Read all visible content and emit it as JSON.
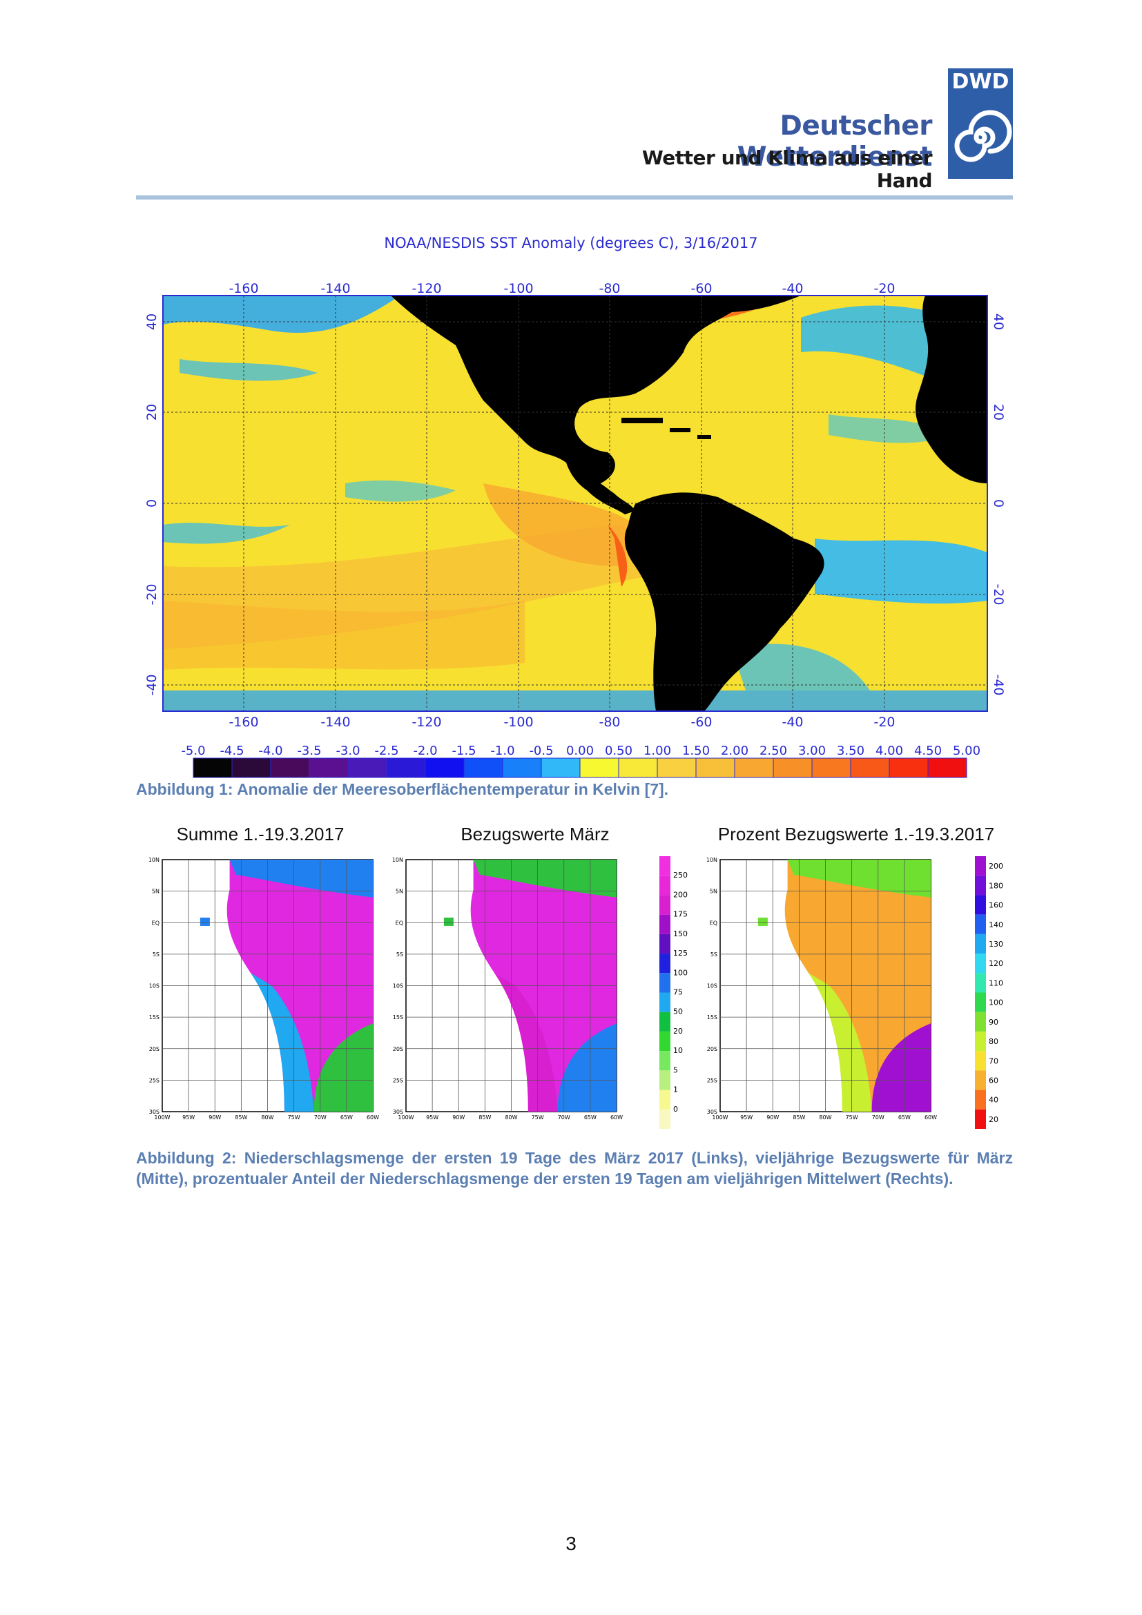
{
  "header": {
    "brand_name": "Deutscher Wetterdienst",
    "brand_tagline": "Wetter und Klima aus einer Hand",
    "logo_text": "DWD",
    "accent_color": "#3a58a0",
    "logo_color": "#2f5ea8",
    "rule_color": "#a9c2dd"
  },
  "figure1": {
    "title": "NOAA/NESDIS SST Anomaly (degrees C), 3/16/2017",
    "lon_ticks": [
      "-160",
      "-140",
      "-120",
      "-100",
      "-80",
      "-60",
      "-40",
      "-20"
    ],
    "lat_ticks": [
      "40",
      "20",
      "0",
      "-20",
      "-40"
    ],
    "colorbar_labels": [
      "-5.0",
      "-4.5",
      "-4.0",
      "-3.5",
      "-3.0",
      "-2.5",
      "-2.0",
      "-1.5",
      "-1.0",
      "-0.5",
      "0.00",
      "0.50",
      "1.00",
      "1.50",
      "2.00",
      "2.50",
      "3.00",
      "3.50",
      "4.00",
      "4.50",
      "5.00"
    ],
    "colorbar_colors": [
      "#050505",
      "#2b0a3a",
      "#4a0a5c",
      "#5a1090",
      "#4a1ab8",
      "#2a1ad8",
      "#1010f0",
      "#1050f8",
      "#1880f8",
      "#30b8f8",
      "#f8f830",
      "#f8e838",
      "#f8d040",
      "#f8c038",
      "#f8a830",
      "#f89028",
      "#f87820",
      "#f85818",
      "#f83010",
      "#f01010"
    ],
    "caption": "Abbildung 1: Anomalie der Meeresoberflächentemperatur in Kelvin [7]."
  },
  "figure2": {
    "panels": [
      {
        "title": "Summe 1.-19.3.2017"
      },
      {
        "title": "Bezugswerte März"
      },
      {
        "title": "Prozent Bezugswerte 1.-19.3.2017"
      }
    ],
    "lat_labels": [
      "10N",
      "5N",
      "EQ",
      "5S",
      "10S",
      "15S",
      "20S",
      "25S",
      "30S"
    ],
    "lon_labels": [
      "100W",
      "95W",
      "90W",
      "85W",
      "80W",
      "75W",
      "70W",
      "65W",
      "60W"
    ],
    "scale1_labels": [
      "250",
      "200",
      "175",
      "150",
      "125",
      "100",
      "75",
      "50",
      "20",
      "10",
      "5",
      "1",
      "0"
    ],
    "scale1_colors": [
      "#f030e0",
      "#e828d8",
      "#d820d0",
      "#a010c8",
      "#6010c0",
      "#2020e0",
      "#2070f0",
      "#20a8f0",
      "#10c040",
      "#30d830",
      "#78e860",
      "#b8f080",
      "#f8f890",
      "#f8f8c0"
    ],
    "scale2_labels": [
      "200",
      "180",
      "160",
      "140",
      "130",
      "120",
      "110",
      "100",
      "90",
      "80",
      "70",
      "60",
      "40",
      "20"
    ],
    "scale2_colors": [
      "#a010d0",
      "#7010d8",
      "#3010e0",
      "#2060f0",
      "#20a8f0",
      "#30d8f0",
      "#30e8b0",
      "#30d850",
      "#80e030",
      "#c8f030",
      "#f8e030",
      "#f8b030",
      "#f87020",
      "#f01010"
    ],
    "caption": "Abbildung 2: Niederschlagsmenge der ersten 19 Tage des März 2017 (Links), vieljährige Bezugswerte für März (Mitte), prozentualer Anteil der Niederschlagsmenge der ersten 19 Tagen am vieljährigen Mittelwert (Rechts)."
  },
  "page_number": "3"
}
